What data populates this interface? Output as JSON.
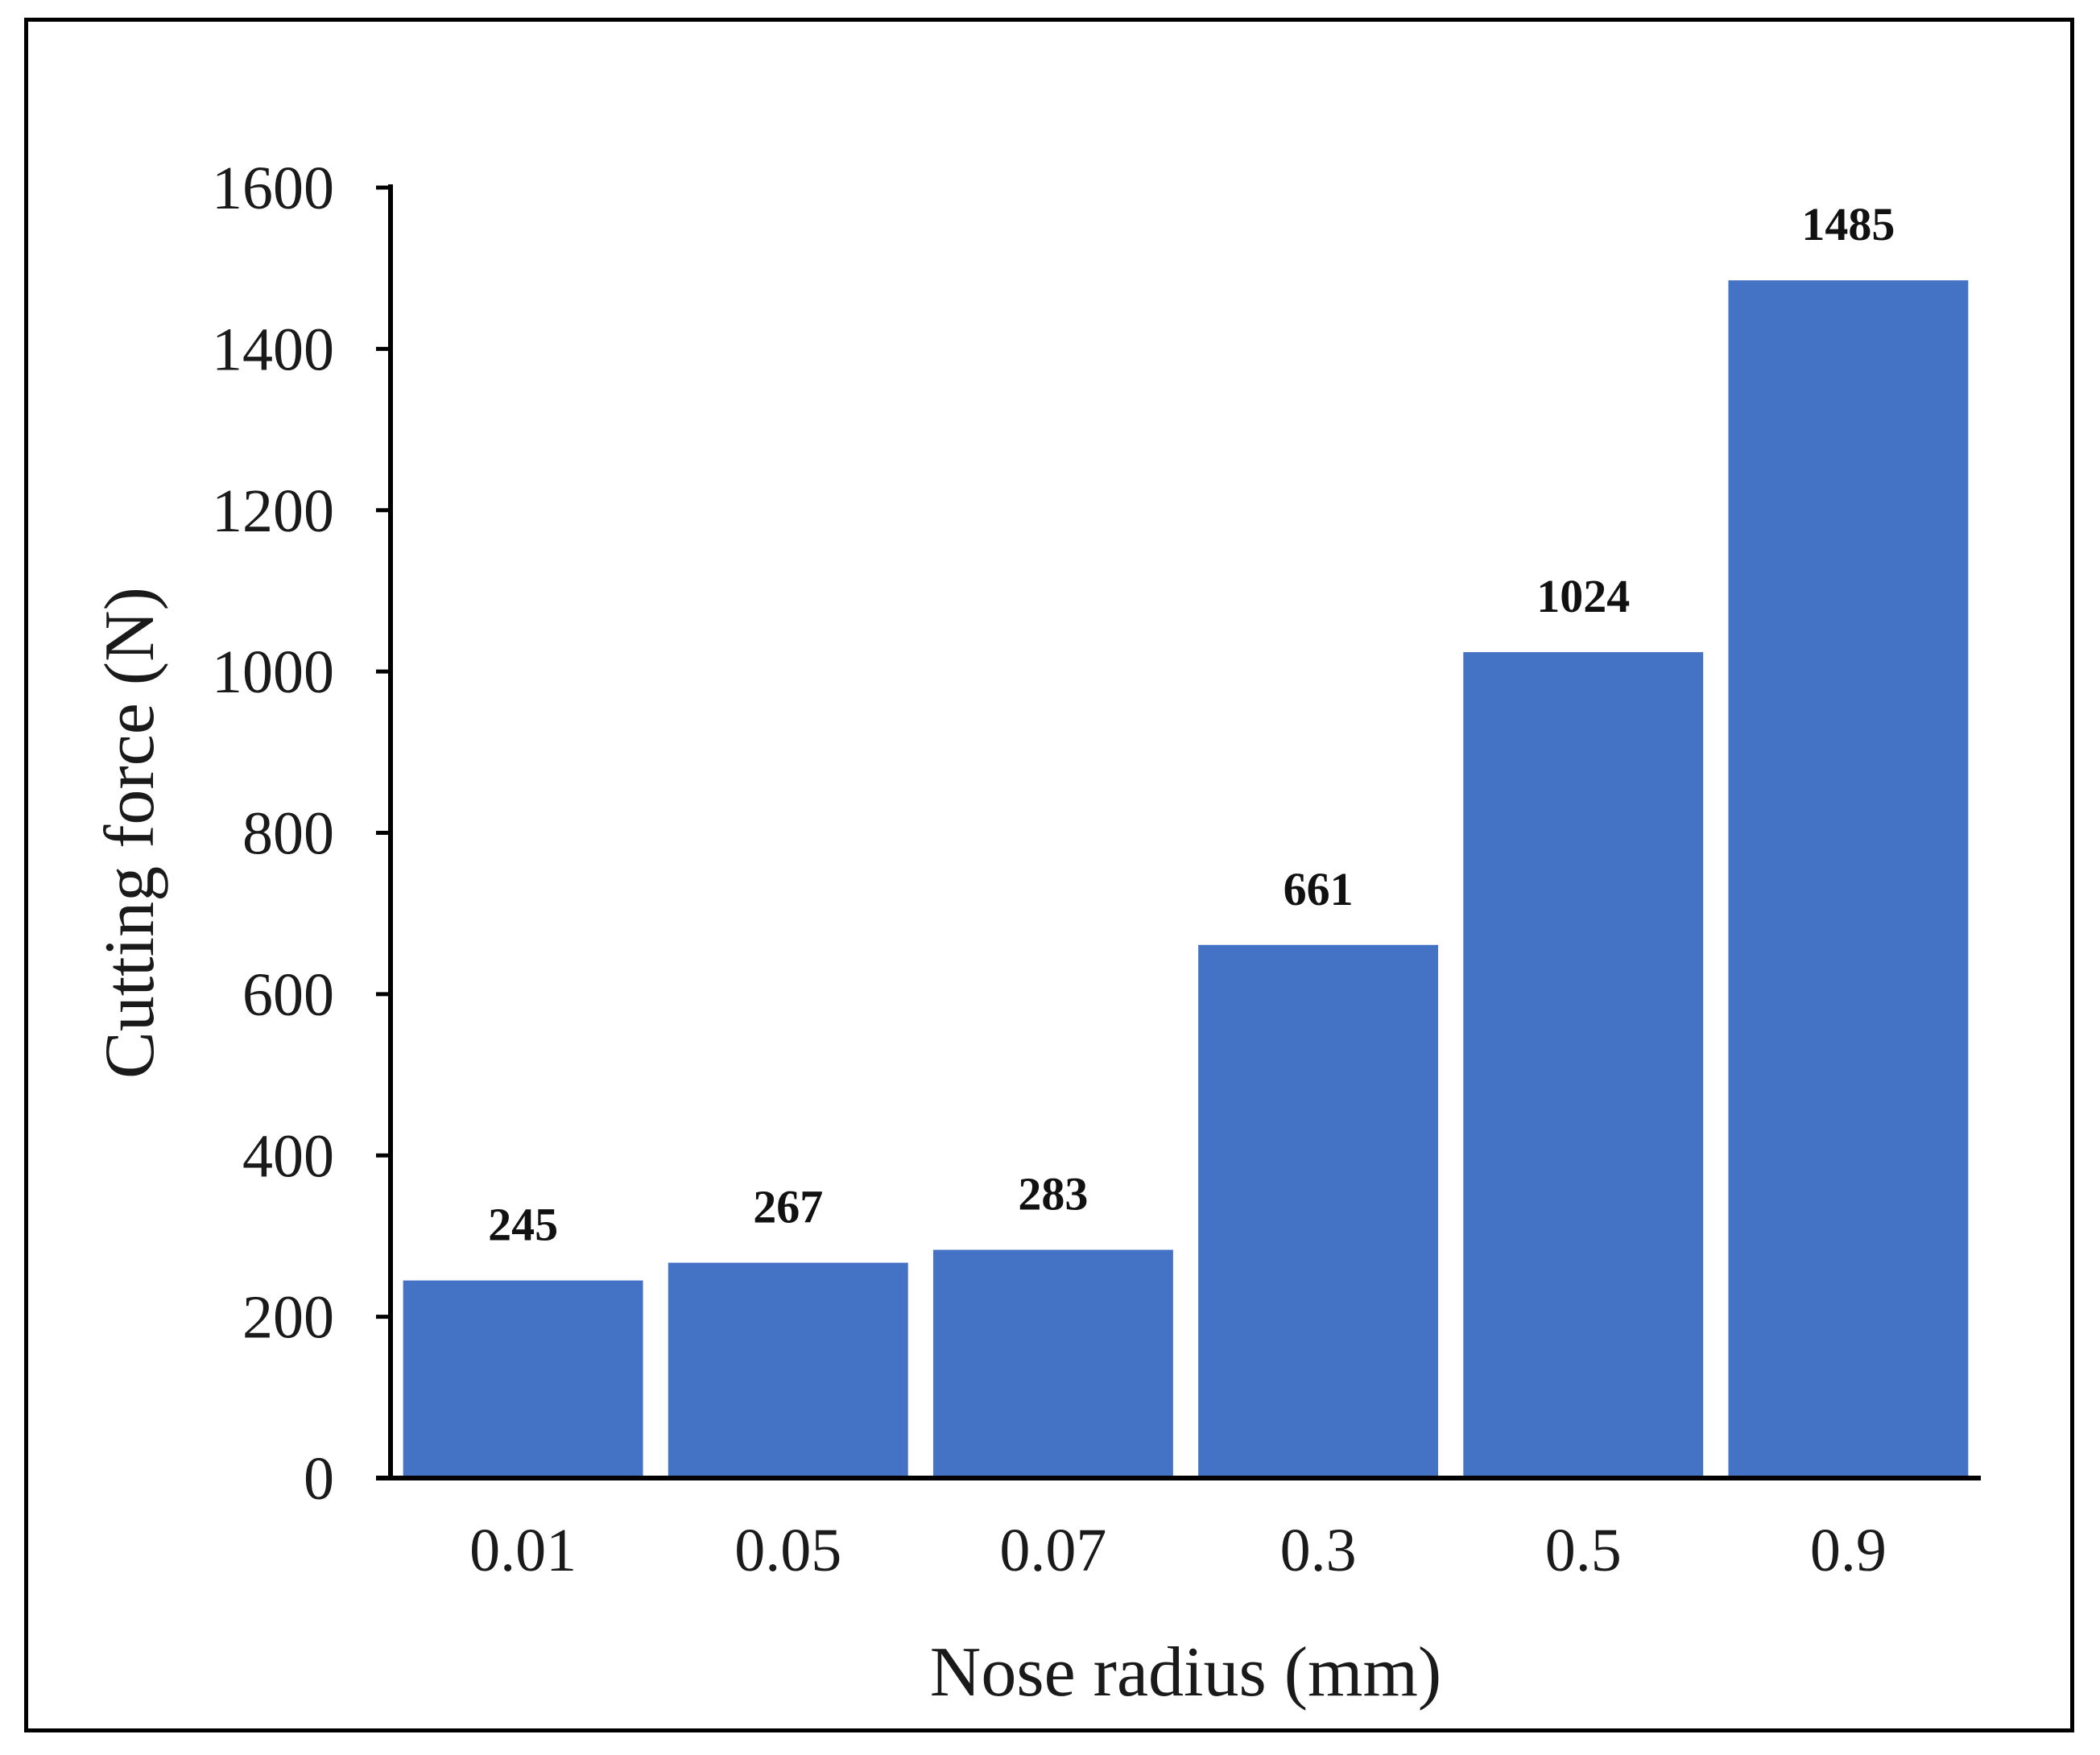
{
  "chart_data": {
    "type": "bar",
    "title": "",
    "xlabel": "Nose radius (mm)",
    "ylabel": "Cutting force (N)",
    "categories": [
      "0.01",
      "0.05",
      "0.07",
      "0.3",
      "0.5",
      "0.9"
    ],
    "values": [
      245,
      267,
      283,
      661,
      1024,
      1485
    ],
    "data_labels": [
      "245",
      "267",
      "283",
      "661",
      "1024",
      "1485"
    ],
    "ylim": [
      0,
      1600
    ],
    "yticks": [
      0,
      200,
      400,
      600,
      800,
      1000,
      1200,
      1400,
      1600
    ],
    "grid": false,
    "legend": "none",
    "bar_color": "#4472C4",
    "axis_color": "#000000"
  }
}
